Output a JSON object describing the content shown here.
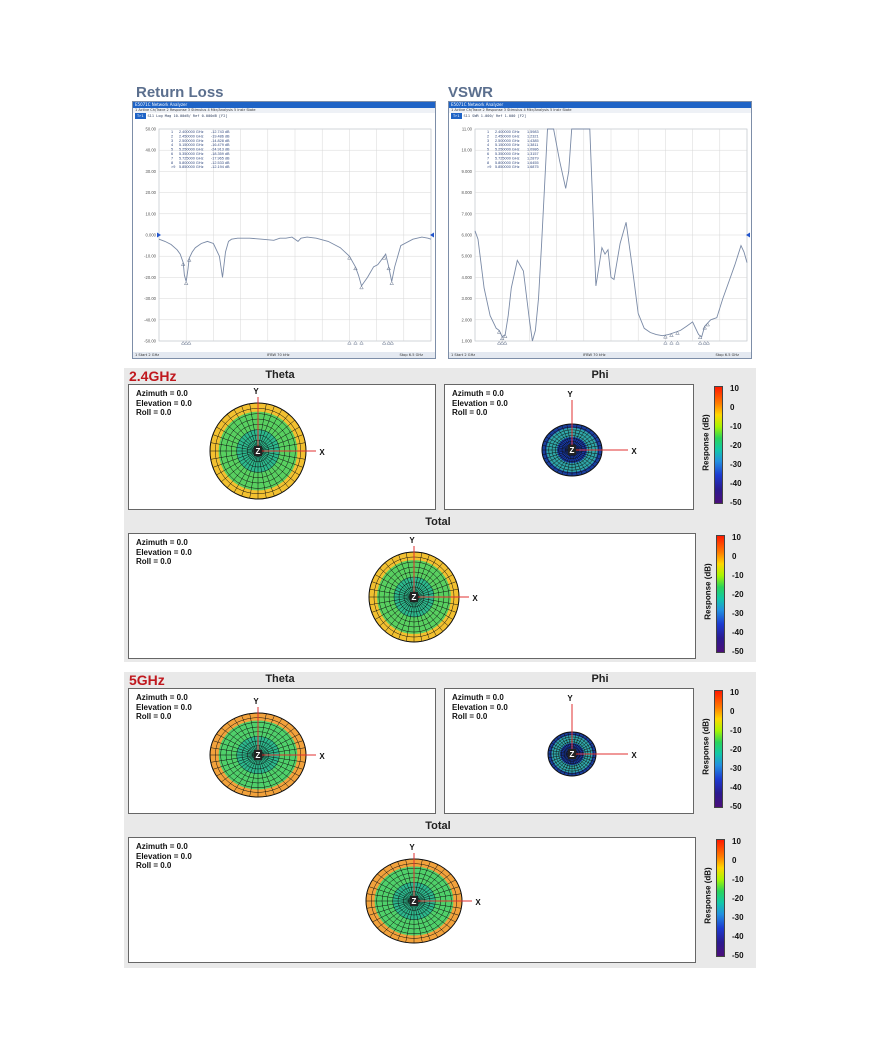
{
  "headers": {
    "return_loss": "Return Loss",
    "vswr": "VSWR"
  },
  "analyzer": {
    "window_title": "E5071C Network Analyzer",
    "menu": "1 Active Ch/Trace   2 Response   3 Stimulus   4 Mkr/Analysis   5 Instr State",
    "status_start": "1  Start 2 GHz",
    "status_ifbw": "IFBW 70 kHz",
    "status_stop": "Stop 6.5 GHz"
  },
  "chart_data": [
    {
      "type": "line",
      "title": "Return Loss",
      "trace_header": "S11 Log Mag 10.00dB/ Ref 0.000dB [F2]",
      "xlim": [
        2.0,
        6.5
      ],
      "ylim": [
        -50,
        50
      ],
      "yticks": [
        50,
        40,
        30,
        20,
        10,
        0,
        -10,
        -20,
        -30,
        -40,
        -50
      ],
      "ytick_labels": [
        "50.00",
        "40.00",
        "30.00",
        "20.00",
        "10.00",
        "0.000",
        "-10.00",
        "-20.00",
        "-30.00",
        "-40.00",
        "-50.00"
      ],
      "grid": true,
      "x": [
        2.0,
        2.1,
        2.2,
        2.3,
        2.35,
        2.4,
        2.42,
        2.45,
        2.48,
        2.5,
        2.55,
        2.6,
        2.7,
        2.8,
        2.9,
        3.0,
        3.05,
        3.1,
        3.15,
        3.2,
        3.3,
        3.5,
        3.7,
        3.9,
        4.0,
        4.1,
        4.2,
        4.3,
        4.35,
        4.45,
        4.6,
        4.8,
        5.0,
        5.15,
        5.25,
        5.3,
        5.35,
        5.45,
        5.55,
        5.62,
        5.7,
        5.75,
        5.8,
        5.85,
        5.9,
        6.0,
        6.2,
        6.35,
        6.45,
        6.5
      ],
      "values": [
        -2,
        -3,
        -4.5,
        -7,
        -9,
        -13,
        -19,
        -22,
        -16,
        -11,
        -8,
        -6,
        -4,
        -3,
        -4,
        -10,
        -20,
        -8,
        -3,
        -2,
        -1.5,
        -1.5,
        -2,
        -2.5,
        -1.5,
        -1.5,
        -1,
        -3,
        -1.5,
        -1,
        -1.5,
        -3,
        -6,
        -10,
        -15,
        -19,
        -24,
        -20,
        -15,
        -14,
        -11,
        -9,
        -15,
        -22,
        -15,
        -5,
        -2,
        -1,
        -1.5,
        -2
      ],
      "markers": [
        {
          "n": "1",
          "freq": "2.400000 GHz",
          "value": "-12.743 dB"
        },
        {
          "n": "2",
          "freq": "2.450000 GHz",
          "value": "-19.486 dB"
        },
        {
          "n": "3",
          "freq": "2.500000 GHz",
          "value": "-14.828 dB"
        },
        {
          "n": "4",
          "freq": "5.150000 GHz",
          "value": "-16.479 dB"
        },
        {
          "n": "5",
          "freq": "5.250000 GHz",
          "value": "-24.913 dB"
        },
        {
          "n": "6",
          "freq": "5.350000 GHz",
          "value": "-18.359 dB"
        },
        {
          "n": "7",
          "freq": "5.725000 GHz",
          "value": "-17.965 dB"
        },
        {
          "n": "8",
          "freq": "5.800000 GHz",
          "value": "-12.533 dB"
        },
        {
          "n": ">9",
          "freq": "5.850000 GHz",
          "value": "-12.194 dB"
        }
      ]
    },
    {
      "type": "line",
      "title": "VSWR",
      "trace_header": "S11 SWR 1.000/ Ref 1.000 [F2]",
      "xlim": [
        2.0,
        6.5
      ],
      "ylim": [
        1,
        11
      ],
      "yticks": [
        11,
        10,
        9,
        8,
        7,
        6,
        5,
        4,
        3,
        2,
        1
      ],
      "ytick_labels": [
        "11.00",
        "10.00",
        "9.000",
        "8.000",
        "7.000",
        "6.000",
        "5.000",
        "4.000",
        "3.000",
        "2.000",
        "1.000"
      ],
      "grid": true,
      "x": [
        2.0,
        2.05,
        2.15,
        2.25,
        2.35,
        2.4,
        2.45,
        2.5,
        2.55,
        2.6,
        2.7,
        2.8,
        2.9,
        2.95,
        3.0,
        3.05,
        3.1,
        3.2,
        3.3,
        3.4,
        3.5,
        3.55,
        3.6,
        3.65,
        3.72,
        3.8,
        3.9,
        4.0,
        4.1,
        4.15,
        4.2,
        4.25,
        4.3,
        4.4,
        4.5,
        4.6,
        4.7,
        4.8,
        4.9,
        5.0,
        5.1,
        5.2,
        5.3,
        5.4,
        5.5,
        5.6,
        5.7,
        5.75,
        5.8,
        5.9,
        6.0,
        6.1,
        6.2,
        6.3,
        6.4,
        6.45,
        6.5
      ],
      "values": [
        6.2,
        5.8,
        3.5,
        2.2,
        1.6,
        1.5,
        1.2,
        1.3,
        2.2,
        3.5,
        4.8,
        4.3,
        2.0,
        1.0,
        1.5,
        3.0,
        5.5,
        11.0,
        11.0,
        9.5,
        8.2,
        9.0,
        11.0,
        11.0,
        11.0,
        11.0,
        11.0,
        3.6,
        5.4,
        5.1,
        5.3,
        4.0,
        3.9,
        5.6,
        6.6,
        4.5,
        2.3,
        1.6,
        1.4,
        1.3,
        1.25,
        1.3,
        1.4,
        1.5,
        1.7,
        1.9,
        1.3,
        1.2,
        1.7,
        2.0,
        2.1,
        3.0,
        3.8,
        4.6,
        5.5,
        5.2,
        4.7
      ],
      "markers": [
        {
          "n": "1",
          "freq": "2.400000 GHz",
          "value": "1.5983"
        },
        {
          "n": "2",
          "freq": "2.450000 GHz",
          "value": "1.2321"
        },
        {
          "n": "3",
          "freq": "2.500000 GHz",
          "value": "1.4385"
        },
        {
          "n": "4",
          "freq": "5.150000 GHz",
          "value": "1.3811"
        },
        {
          "n": "5",
          "freq": "5.250000 GHz",
          "value": "1.0986"
        },
        {
          "n": "6",
          "freq": "5.350000 GHz",
          "value": "1.3157"
        },
        {
          "n": "7",
          "freq": "5.725000 GHz",
          "value": "1.2879"
        },
        {
          "n": "8",
          "freq": "5.800000 GHz",
          "value": "1.6455"
        },
        {
          "n": ">9",
          "freq": "5.850000 GHz",
          "value": "1.6875"
        }
      ]
    }
  ],
  "patterns": {
    "panels": [
      {
        "freq": "2.4GHz",
        "theta_title": "Theta",
        "phi_title": "Phi",
        "total_title": "Total"
      },
      {
        "freq": "5GHz",
        "theta_title": "Theta",
        "phi_title": "Phi",
        "total_title": "Total"
      }
    ],
    "orientation": {
      "azimuth": "Azimuth = 0.0",
      "elevation": "Elevation = 0.0",
      "roll": "Roll = 0.0"
    },
    "axes": {
      "x": "X",
      "y": "Y",
      "z": "Z"
    },
    "colorbar": {
      "label": "Response (dB)",
      "ticks": [
        "10",
        "0",
        "-10",
        "-20",
        "-30",
        "-40",
        "-50"
      ]
    }
  },
  "colors": {
    "trace": "#7a8aa6",
    "grid": "#d7d7d7",
    "axis_line": "#e03030"
  }
}
